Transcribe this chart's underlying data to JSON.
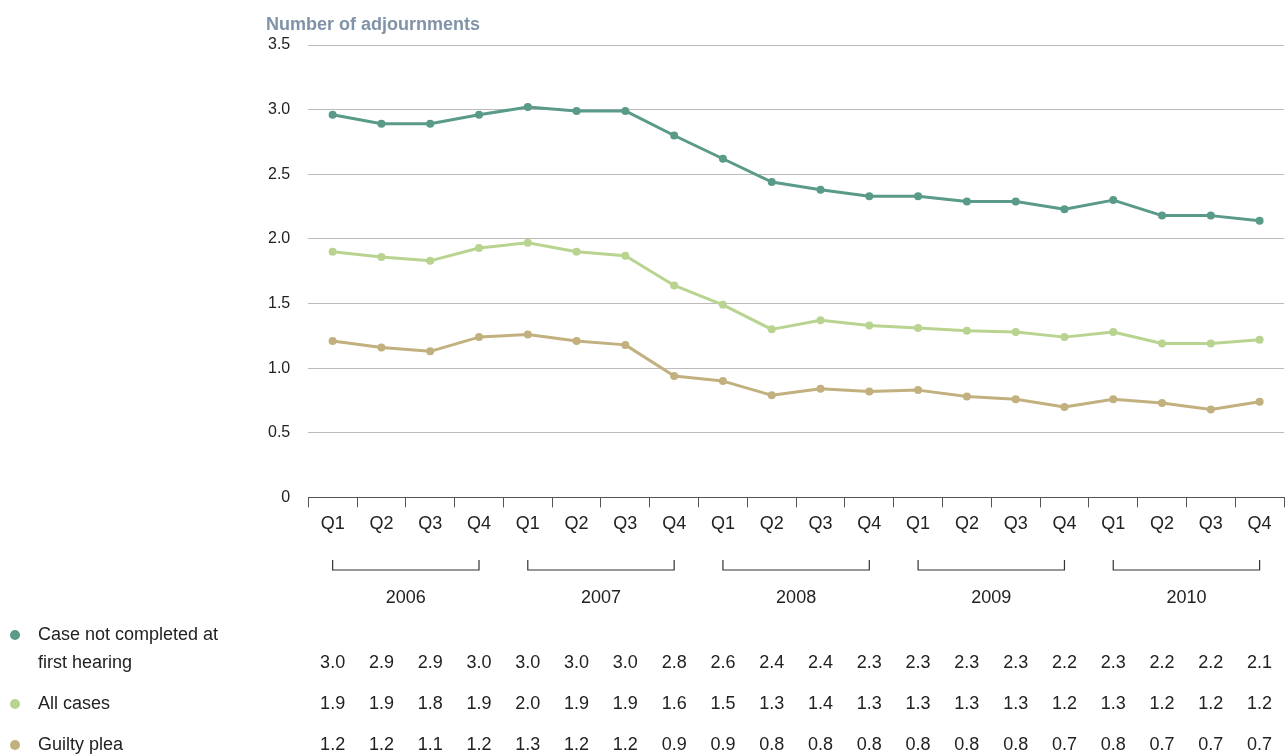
{
  "chart_data": {
    "type": "line",
    "ylabel": "Number of adjournments",
    "categories": [
      "Q1",
      "Q2",
      "Q3",
      "Q4",
      "Q1",
      "Q2",
      "Q3",
      "Q4",
      "Q1",
      "Q2",
      "Q3",
      "Q4",
      "Q1",
      "Q2",
      "Q3",
      "Q4",
      "Q1",
      "Q2",
      "Q3",
      "Q4"
    ],
    "annotations": [
      "2006",
      "2007",
      "2008",
      "2009",
      "2010"
    ],
    "series": [
      {
        "name": "Case not completed at first hearing",
        "color": "#5a9a88",
        "values": [
          2.96,
          2.89,
          2.89,
          2.96,
          3.02,
          2.99,
          2.99,
          2.8,
          2.62,
          2.44,
          2.38,
          2.33,
          2.33,
          2.29,
          2.29,
          2.23,
          2.3,
          2.18,
          2.18,
          2.14
        ],
        "value_labels": [
          "3.0",
          "2.9",
          "2.9",
          "3.0",
          "3.0",
          "3.0",
          "3.0",
          "2.8",
          "2.6",
          "2.4",
          "2.4",
          "2.3",
          "2.3",
          "2.3",
          "2.3",
          "2.2",
          "2.3",
          "2.2",
          "2.2",
          "2.1"
        ]
      },
      {
        "name": "All cases",
        "color": "#b8d490",
        "values": [
          1.9,
          1.86,
          1.83,
          1.93,
          1.97,
          1.9,
          1.87,
          1.64,
          1.49,
          1.3,
          1.37,
          1.33,
          1.31,
          1.29,
          1.28,
          1.24,
          1.28,
          1.19,
          1.19,
          1.22
        ],
        "value_labels": [
          "1.9",
          "1.9",
          "1.8",
          "1.9",
          "2.0",
          "1.9",
          "1.9",
          "1.6",
          "1.5",
          "1.3",
          "1.4",
          "1.3",
          "1.3",
          "1.3",
          "1.3",
          "1.2",
          "1.3",
          "1.2",
          "1.2",
          "1.2"
        ]
      },
      {
        "name": "Guilty plea",
        "color": "#c2b07f",
        "values": [
          1.21,
          1.16,
          1.13,
          1.24,
          1.26,
          1.21,
          1.18,
          0.94,
          0.9,
          0.79,
          0.84,
          0.82,
          0.83,
          0.78,
          0.76,
          0.7,
          0.76,
          0.73,
          0.68,
          0.74
        ],
        "value_labels": [
          "1.2",
          "1.2",
          "1.1",
          "1.2",
          "1.3",
          "1.2",
          "1.2",
          "0.9",
          "0.9",
          "0.8",
          "0.8",
          "0.8",
          "0.8",
          "0.8",
          "0.8",
          "0.7",
          "0.8",
          "0.7",
          "0.7",
          "0.7"
        ]
      }
    ],
    "ylim": [
      0,
      3.5
    ],
    "yticks": [
      0,
      0.5,
      {
        "value": 1,
        "label": "1.0"
      },
      1.5,
      {
        "value": 2,
        "label": "2.0"
      },
      2.5,
      {
        "value": 3,
        "label": "3.0"
      },
      3.5
    ],
    "grid": "y",
    "legend": "bottom left",
    "marker": "circle",
    "line_style": "solid"
  }
}
